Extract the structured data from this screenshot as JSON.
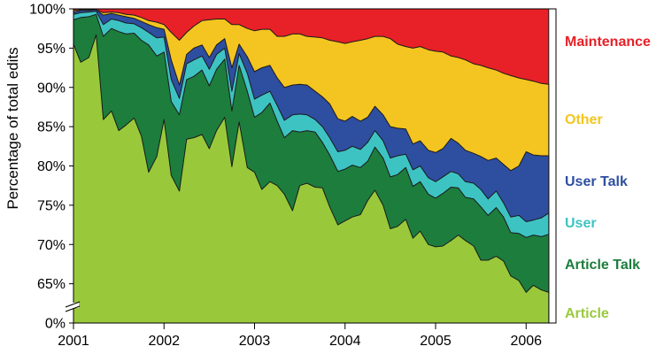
{
  "chart_data": {
    "type": "area",
    "stacked": true,
    "stack_normalized_percent": true,
    "title": "",
    "xlabel": "",
    "ylabel": "Percentage of total edits",
    "ylim": [
      60,
      100
    ],
    "y_axis_break": true,
    "y_ticks": [
      "100%",
      "95%",
      "90%",
      "85%",
      "80%",
      "75%",
      "70%",
      "65%",
      "0%"
    ],
    "x_ticks": [
      "2001",
      "2002",
      "2003",
      "2004",
      "2005",
      "2006"
    ],
    "legend_placement": "right",
    "grid": false,
    "x": [
      2001.0,
      2001.08,
      2001.17,
      2001.25,
      2001.33,
      2001.42,
      2001.5,
      2001.58,
      2001.67,
      2001.75,
      2001.83,
      2001.92,
      2002.0,
      2002.08,
      2002.17,
      2002.25,
      2002.33,
      2002.42,
      2002.5,
      2002.58,
      2002.67,
      2002.75,
      2002.83,
      2002.92,
      2003.0,
      2003.08,
      2003.17,
      2003.25,
      2003.33,
      2003.42,
      2003.5,
      2003.58,
      2003.67,
      2003.75,
      2003.83,
      2003.92,
      2004.0,
      2004.08,
      2004.17,
      2004.25,
      2004.33,
      2004.42,
      2004.5,
      2004.58,
      2004.67,
      2004.75,
      2004.83,
      2004.92,
      2005.0,
      2005.08,
      2005.17,
      2005.25,
      2005.33,
      2005.42,
      2005.5,
      2005.58,
      2005.67,
      2005.75,
      2005.83,
      2005.92,
      2006.0,
      2006.08,
      2006.17,
      2006.25
    ],
    "series": [
      {
        "name": "Article",
        "color": "#99c93b",
        "cumulative_top": [
          95.5,
          93.2,
          93.8,
          96.7,
          85.9,
          87.0,
          84.5,
          85.2,
          86.1,
          83.8,
          79.2,
          81.2,
          85.9,
          78.8,
          76.8,
          83.4,
          83.6,
          84.0,
          82.2,
          84.5,
          86.2,
          79.9,
          85.6,
          79.8,
          79.2,
          77.0,
          78.0,
          77.5,
          76.4,
          74.3,
          77.5,
          77.8,
          77.3,
          77.2,
          74.8,
          72.5,
          73.0,
          73.5,
          73.8,
          75.6,
          76.9,
          75.0,
          72.0,
          72.3,
          73.2,
          70.8,
          71.7,
          70.0,
          69.7,
          69.8,
          70.5,
          71.2,
          70.5,
          69.8,
          68.0,
          68.0,
          68.5,
          67.9,
          66.0,
          65.4,
          63.9,
          64.8,
          64.2,
          63.9
        ]
      },
      {
        "name": "Article Talk",
        "color": "#1d7d3d",
        "cumulative_top": [
          98.6,
          98.9,
          99.0,
          99.3,
          96.5,
          97.5,
          97.1,
          96.8,
          96.9,
          96.0,
          95.4,
          94.0,
          94.5,
          88.2,
          86.5,
          91.0,
          91.4,
          92.2,
          90.2,
          92.3,
          93.6,
          87.0,
          92.8,
          89.5,
          86.2,
          86.8,
          88.0,
          85.7,
          83.6,
          84.5,
          84.3,
          84.5,
          84.3,
          83.0,
          81.4,
          79.3,
          79.6,
          80.1,
          79.8,
          80.6,
          82.4,
          81.0,
          78.6,
          78.9,
          79.8,
          77.4,
          78.0,
          76.4,
          75.9,
          76.5,
          77.3,
          77.2,
          76.0,
          75.8,
          74.8,
          73.7,
          74.7,
          73.5,
          71.5,
          71.4,
          70.9,
          71.2,
          71.0,
          71.3
        ]
      },
      {
        "name": "User",
        "color": "#3ec3c3",
        "cumulative_top": [
          99.3,
          99.5,
          99.6,
          99.7,
          98.0,
          98.7,
          98.5,
          98.2,
          98.1,
          97.6,
          97.0,
          96.3,
          96.4,
          91.0,
          88.6,
          93.0,
          93.5,
          94.0,
          92.3,
          94.2,
          95.0,
          89.5,
          94.3,
          91.8,
          88.5,
          89.0,
          89.5,
          87.7,
          85.8,
          86.5,
          86.6,
          86.5,
          85.9,
          85.0,
          83.6,
          81.8,
          82.0,
          82.5,
          82.1,
          83.0,
          84.5,
          83.2,
          81.0,
          81.3,
          81.5,
          79.5,
          80.0,
          78.5,
          78.0,
          78.6,
          79.3,
          79.0,
          78.0,
          77.8,
          77.0,
          75.8,
          76.8,
          75.3,
          73.5,
          73.7,
          72.9,
          73.1,
          73.4,
          74.0
        ]
      },
      {
        "name": "User Talk",
        "color": "#2e4ea0",
        "cumulative_top": [
          99.6,
          99.8,
          99.8,
          99.9,
          99.2,
          99.4,
          99.2,
          99.0,
          98.8,
          98.4,
          98.0,
          97.6,
          97.4,
          93.5,
          90.3,
          94.2,
          95.0,
          95.4,
          93.8,
          95.4,
          96.2,
          92.5,
          95.5,
          93.9,
          92.0,
          92.5,
          92.8,
          91.2,
          90.0,
          90.3,
          90.4,
          90.3,
          89.5,
          88.8,
          87.9,
          86.0,
          85.7,
          86.3,
          85.7,
          86.2,
          87.6,
          86.5,
          85.0,
          84.8,
          84.7,
          82.8,
          83.2,
          82.0,
          81.7,
          82.2,
          83.5,
          82.9,
          82.0,
          81.6,
          81.2,
          80.7,
          81.0,
          80.2,
          79.4,
          80.0,
          81.8,
          81.4,
          81.3,
          81.3
        ]
      },
      {
        "name": "Other",
        "color": "#f4c520",
        "cumulative_top": [
          99.8,
          99.9,
          99.9,
          99.9,
          99.5,
          99.6,
          99.5,
          99.3,
          99.2,
          98.9,
          98.5,
          98.3,
          98.0,
          97.0,
          96.0,
          97.0,
          97.8,
          98.5,
          98.6,
          98.7,
          98.7,
          98.0,
          98.0,
          97.5,
          97.2,
          97.4,
          97.4,
          96.5,
          96.5,
          96.8,
          96.8,
          96.5,
          96.4,
          96.3,
          96.0,
          95.8,
          95.6,
          95.8,
          96.0,
          96.2,
          96.5,
          96.5,
          96.2,
          95.5,
          95.2,
          95.0,
          95.2,
          94.8,
          94.6,
          94.5,
          94.0,
          93.8,
          93.5,
          93.0,
          92.8,
          92.5,
          92.2,
          91.8,
          91.5,
          91.2,
          91.0,
          90.8,
          90.5,
          90.4
        ]
      },
      {
        "name": "Maintenance",
        "color": "#e82027",
        "cumulative_top": [
          100,
          100,
          100,
          100,
          100,
          100,
          100,
          100,
          100,
          100,
          100,
          100,
          100,
          100,
          100,
          100,
          100,
          100,
          100,
          100,
          100,
          100,
          100,
          100,
          100,
          100,
          100,
          100,
          100,
          100,
          100,
          100,
          100,
          100,
          100,
          100,
          100,
          100,
          100,
          100,
          100,
          100,
          100,
          100,
          100,
          100,
          100,
          100,
          100,
          100,
          100,
          100,
          100,
          100,
          100,
          100,
          100,
          100,
          100,
          100,
          100,
          100,
          100,
          100
        ]
      }
    ]
  }
}
